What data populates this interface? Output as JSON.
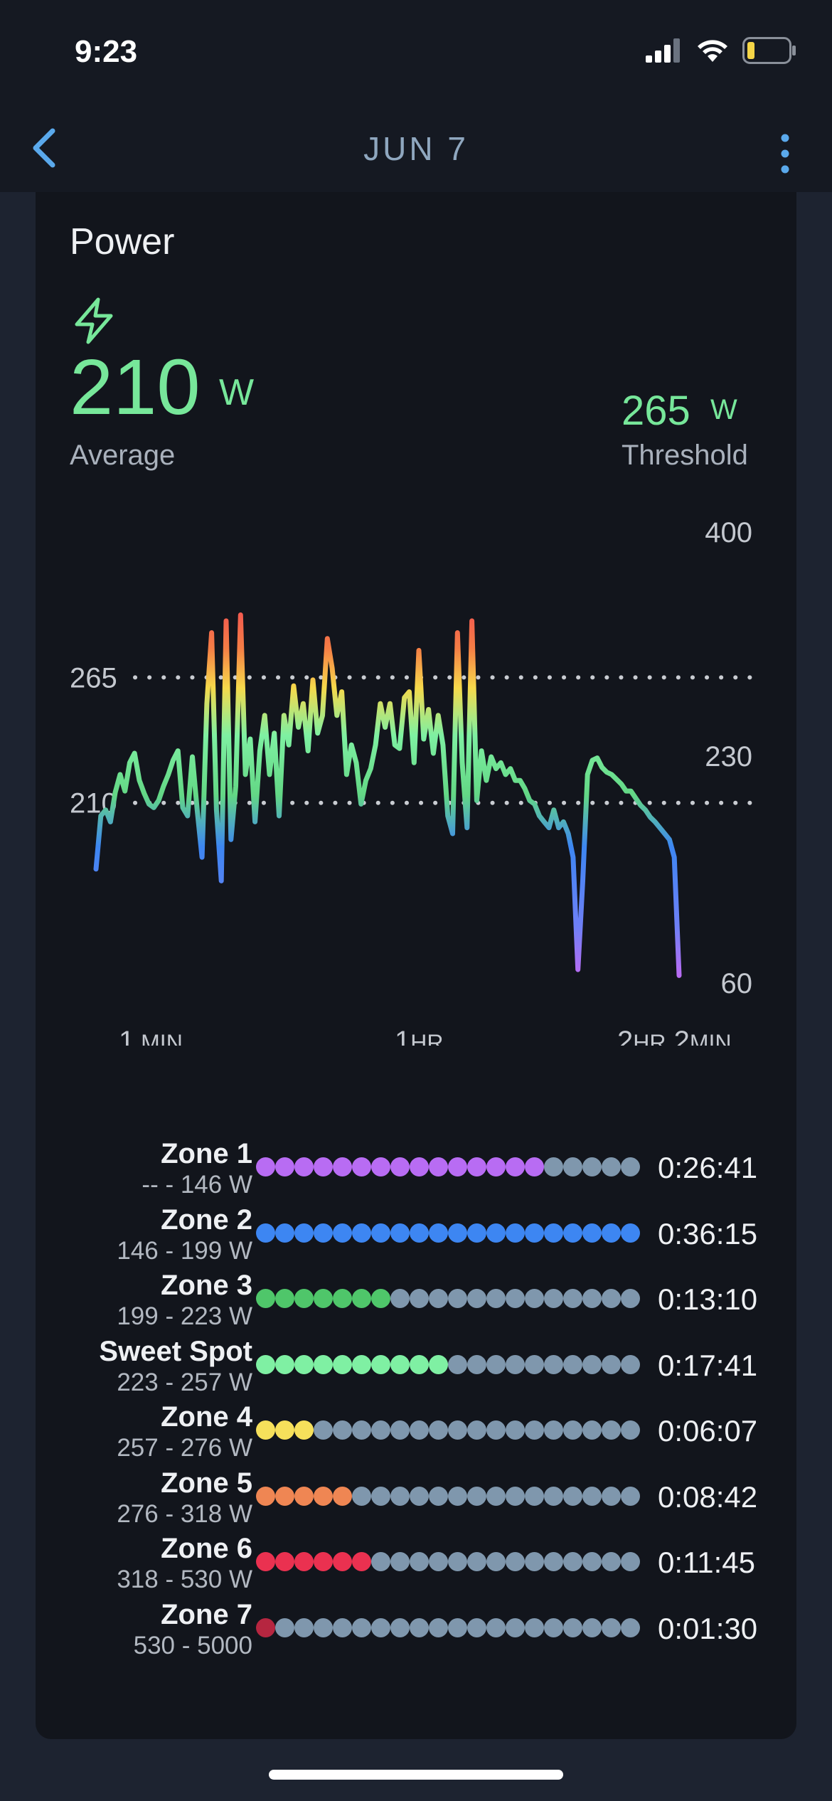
{
  "status": {
    "time": "9:23"
  },
  "nav": {
    "title": "JUN 7",
    "back_icon": "chevron-left-icon",
    "more_icon": "vertical-ellipsis-icon"
  },
  "colors": {
    "accent": "#5aa9ec",
    "power_green": "#77e79a",
    "inactive_dot": "#7f97ad"
  },
  "power": {
    "title": "Power",
    "icon": "lightning-bolt-icon",
    "average_value": "210",
    "average_unit": "W",
    "average_label": "Average",
    "threshold_value": "265",
    "threshold_unit": "W",
    "threshold_label": "Threshold"
  },
  "chart_data": {
    "type": "line",
    "x_tick_labels": [
      "1 MIN",
      "1HR",
      "2HR 2MIN"
    ],
    "x_ticks": [
      {
        "main": "1",
        "unit": "MIN"
      },
      {
        "main": "1",
        "unit": "HR"
      },
      {
        "main": "2",
        "unit": "HR",
        "main2": "2",
        "unit2": "MIN"
      }
    ],
    "x_range_min": [
      1,
      122
    ],
    "y_right_labels": [
      "400",
      "230",
      "60"
    ],
    "y_right_values": [
      400,
      230,
      60
    ],
    "reference_lines": [
      {
        "label": "265",
        "value": 265
      },
      {
        "label": "210",
        "value": 210
      }
    ],
    "ylim": [
      60,
      400
    ],
    "series": [
      {
        "x_min": [
          1,
          2,
          3,
          4,
          5,
          6,
          7,
          8,
          9,
          10,
          11,
          12,
          13,
          14,
          15,
          16,
          17,
          18,
          19,
          20,
          21,
          22,
          23,
          24,
          25,
          26,
          27,
          28,
          29,
          30,
          31,
          32,
          33,
          34,
          35,
          36,
          37,
          38,
          39,
          40,
          41,
          42,
          43,
          44,
          45,
          46,
          47,
          48,
          49,
          50,
          51,
          52,
          53,
          54,
          55,
          56,
          57,
          58,
          59,
          60,
          61,
          62,
          63,
          64,
          65,
          66,
          67,
          68,
          69,
          70,
          71,
          72,
          73,
          74,
          75,
          76,
          77,
          78,
          79,
          80,
          81,
          82,
          83,
          84,
          85,
          86,
          87,
          88,
          89,
          90,
          91,
          92,
          93,
          94,
          95,
          96,
          97,
          98,
          99,
          100,
          101,
          102,
          103,
          104,
          105,
          106,
          107,
          108,
          109,
          110,
          111,
          112,
          113,
          114,
          115,
          116,
          117,
          118,
          119,
          120,
          121,
          122
        ],
        "y_watts": [
          160,
          205,
          210,
          200,
          225,
          240,
          226,
          250,
          258,
          235,
          224,
          215,
          212,
          218,
          230,
          240,
          252,
          260,
          212,
          205,
          255,
          210,
          170,
          300,
          360,
          210,
          150,
          370,
          185,
          230,
          375,
          240,
          270,
          200,
          260,
          290,
          240,
          275,
          205,
          290,
          265,
          315,
          280,
          300,
          260,
          320,
          275,
          290,
          355,
          330,
          290,
          310,
          240,
          265,
          250,
          215,
          235,
          245,
          265,
          300,
          280,
          300,
          265,
          262,
          305,
          310,
          250,
          345,
          270,
          295,
          258,
          290,
          265,
          205,
          190,
          360,
          250,
          195,
          370,
          218,
          260,
          235,
          255,
          245,
          250,
          240,
          245,
          235,
          235,
          228,
          218,
          215,
          205,
          200,
          195,
          210,
          195,
          200,
          190,
          170,
          75,
          150,
          240,
          252,
          254,
          246,
          242,
          240,
          236,
          232,
          226,
          226,
          220,
          214,
          210,
          204,
          200,
          195,
          190,
          185,
          170,
          70
        ]
      }
    ]
  },
  "zones": [
    {
      "name": "Zone 1",
      "range": "-- - 146 W",
      "time": "0:26:41",
      "color": "#b86cf3",
      "filled": 15
    },
    {
      "name": "Zone 2",
      "range": "146 - 199 W",
      "time": "0:36:15",
      "color": "#3d86f2",
      "filled": 20
    },
    {
      "name": "Zone 3",
      "range": "199 - 223 W",
      "time": "0:13:10",
      "color": "#4fc66a",
      "filled": 7
    },
    {
      "name": "Sweet Spot",
      "range": "223 - 257 W",
      "time": "0:17:41",
      "color": "#7ff0a3",
      "filled": 10
    },
    {
      "name": "Zone 4",
      "range": "257 - 276 W",
      "time": "0:06:07",
      "color": "#f6e05b",
      "filled": 3
    },
    {
      "name": "Zone 5",
      "range": "276 - 318 W",
      "time": "0:08:42",
      "color": "#ef8653",
      "filled": 5
    },
    {
      "name": "Zone 6",
      "range": "318 - 530 W",
      "time": "0:11:45",
      "color": "#ea3150",
      "filled": 6
    },
    {
      "name": "Zone 7",
      "range": "530 - 5000",
      "time": "0:01:30",
      "color": "#b62640",
      "filled": 1
    }
  ]
}
